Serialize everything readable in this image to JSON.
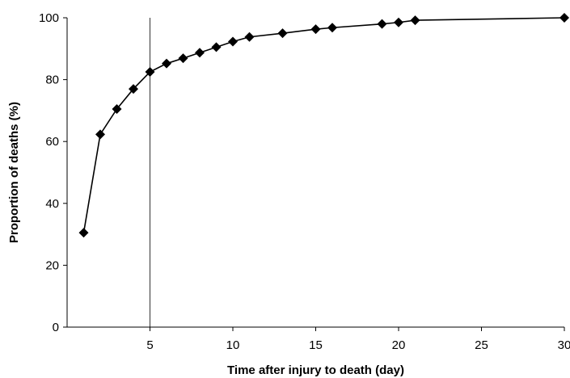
{
  "chart_data": {
    "type": "line",
    "title": "",
    "xlabel": "Time after injury to death (day)",
    "ylabel": "Proportion of deaths (%)",
    "xlim": [
      0,
      30
    ],
    "ylim": [
      0,
      100
    ],
    "x_ticks": [
      5,
      10,
      15,
      20,
      25,
      30
    ],
    "x_tick_labels": [
      "5",
      "10",
      "15",
      "20",
      "25",
      "30"
    ],
    "y_ticks": [
      0,
      20,
      40,
      60,
      80,
      100
    ],
    "y_tick_labels": [
      "0",
      "20",
      "40",
      "60",
      "80",
      "100"
    ],
    "grid": false,
    "legend": "none",
    "reference_line": {
      "axis": "x",
      "value": 5
    },
    "marker": "diamond",
    "line_color": "#000000",
    "series": [
      {
        "x": [
          1,
          2,
          3,
          4,
          5,
          6,
          7,
          8,
          9,
          10,
          11,
          13,
          15,
          16,
          19,
          20,
          21,
          30
        ],
        "y": [
          30.5,
          62.3,
          70.5,
          77.0,
          82.5,
          85.2,
          86.9,
          88.7,
          90.5,
          92.3,
          93.8,
          95.0,
          96.3,
          96.8,
          98.0,
          98.5,
          99.2,
          100.0
        ]
      }
    ]
  }
}
